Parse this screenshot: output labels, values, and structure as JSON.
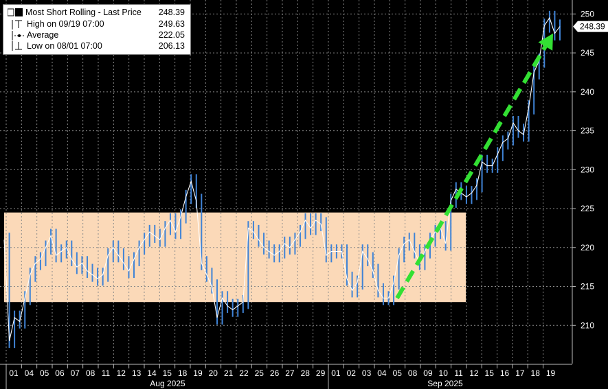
{
  "legend": {
    "title": "Most Short Rolling - Last Price",
    "title_value": "248.39",
    "high_label": "High on 09/19 07:00",
    "high_value": "249.63",
    "avg_label": "Average",
    "avg_value": "222.05",
    "low_label": "Low on 08/01 07:00",
    "low_value": "206.13"
  },
  "last_price_tag": "248.39",
  "colors": {
    "background": "#000000",
    "band": "#fbd9b8",
    "candle": "#3f83d6",
    "arrow": "#33e033",
    "tag_bg": "#ffffff",
    "grid": "#8a8a8a"
  },
  "chart_data": {
    "type": "line",
    "title": "Most Short Rolling - Last Price",
    "y_ticks": [
      210,
      215,
      220,
      225,
      230,
      235,
      240,
      245,
      250
    ],
    "ylim": [
      205,
      251
    ],
    "x_tick_labels": [
      "01",
      "04",
      "05",
      "06",
      "07",
      "08",
      "11",
      "12",
      "13",
      "14",
      "15",
      "18",
      "19",
      "20",
      "21",
      "22",
      "25",
      "26",
      "27",
      "28",
      "29",
      "01",
      "02",
      "03",
      "04",
      "05",
      "08",
      "09",
      "10",
      "11",
      "12",
      "15",
      "16",
      "17",
      "18",
      "19"
    ],
    "months": [
      "Aug 2025",
      "Sep 2025"
    ],
    "band": {
      "from": 213,
      "to": 224.5,
      "x_start": "08/01",
      "x_end": "09/11"
    },
    "arrow": {
      "from": {
        "x": "09/04",
        "y": 213.5
      },
      "to": {
        "x": "09/18",
        "y": 247.5
      }
    },
    "grid": true,
    "series": [
      {
        "values": [
          221.0,
          208.0,
          211.0,
          210.5,
          213.5,
          216.5,
          218.0,
          218.5,
          220.0,
          221.5,
          219.0,
          219.5,
          220.0,
          218.5,
          217.5,
          218.0,
          217.0,
          216.5,
          216.0,
          216.5,
          219.0,
          220.0,
          219.0,
          218.0,
          217.0,
          218.5,
          220.0,
          221.0,
          222.0,
          221.5,
          221.0,
          222.5,
          223.5,
          222.0,
          224.0,
          226.5,
          228.5,
          226.0,
          218.0,
          216.5,
          215.0,
          211.0,
          213.5,
          212.5,
          212.0,
          212.5,
          213.0,
          222.5,
          222.0,
          221.0,
          220.0,
          219.5,
          219.0,
          219.5,
          220.5,
          220.0,
          221.0,
          222.0,
          223.5,
          222.5,
          223.5,
          223.0,
          219.0,
          219.5,
          219.5,
          219.5,
          216.0,
          214.5,
          215.5,
          219.5,
          218.5,
          217.0,
          214.5,
          213.5,
          213.5,
          215.5,
          219.0,
          220.5,
          221.0,
          219.5,
          218.0,
          219.5,
          221.0,
          222.0,
          222.5,
          220.5,
          226.0,
          227.5,
          227.0,
          226.5,
          227.0,
          228.0,
          231.0,
          230.5,
          230.5,
          232.0,
          233.5,
          234.0,
          236.0,
          235.0,
          234.5,
          238.0,
          242.5,
          244.0,
          248.5,
          249.5,
          247.5,
          248.39
        ]
      }
    ]
  }
}
